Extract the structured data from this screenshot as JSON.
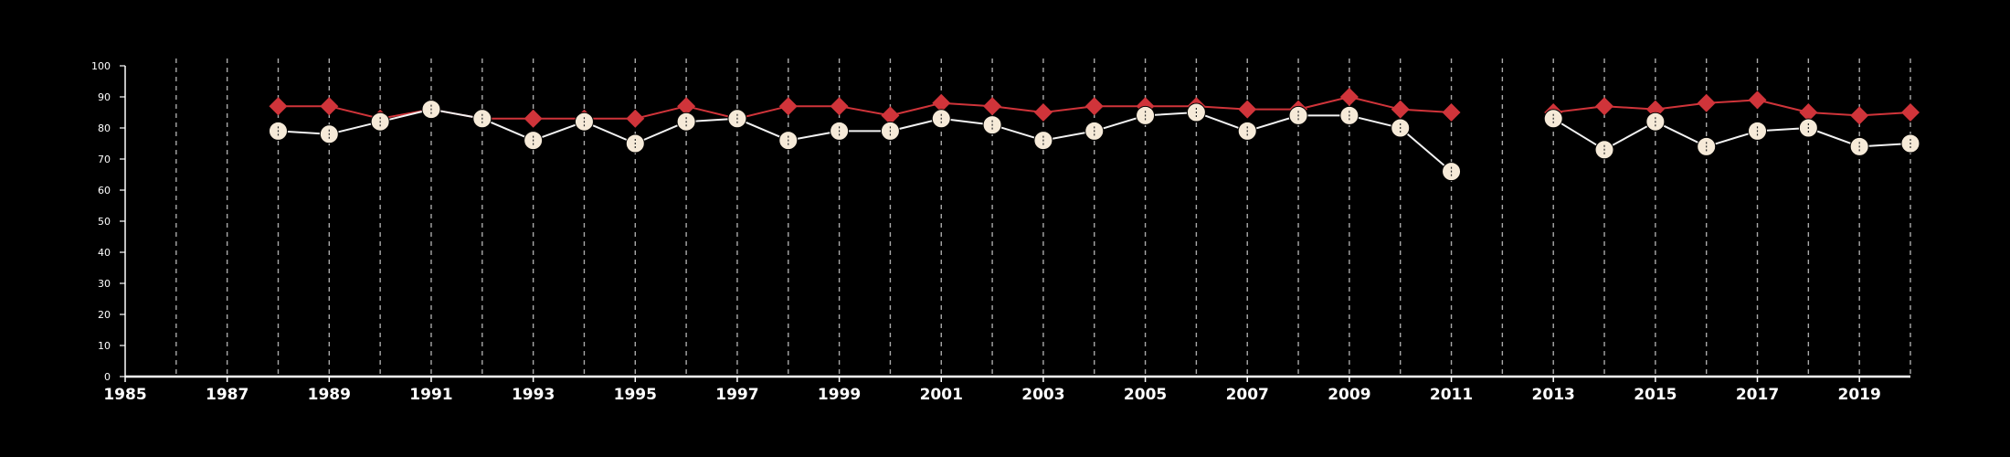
{
  "colors": {
    "background": "#000000",
    "axis": "#ffffff",
    "grid": "#aaaaaa",
    "series_a": "#d0343a",
    "series_b": "#f6ead8",
    "series_b_line": "#f2f2f2"
  },
  "chart_data": {
    "type": "line",
    "title": "",
    "xlabel": "",
    "ylabel": "",
    "xlim": [
      1985,
      2020
    ],
    "ylim": [
      0,
      100
    ],
    "x_ticks": [
      1985,
      1987,
      1989,
      1991,
      1993,
      1995,
      1997,
      1999,
      2001,
      2003,
      2005,
      2007,
      2009,
      2011,
      2013,
      2015,
      2017,
      2019
    ],
    "y_ticks": [
      0,
      10,
      20,
      30,
      40,
      50,
      60,
      70,
      80,
      90,
      100
    ],
    "x_gridlines": [
      1986,
      1987,
      1988,
      1989,
      1990,
      1991,
      1992,
      1993,
      1994,
      1995,
      1996,
      1997,
      1998,
      1999,
      2000,
      2001,
      2002,
      2003,
      2004,
      2005,
      2006,
      2007,
      2008,
      2009,
      2010,
      2011,
      2012,
      2013,
      2014,
      2015,
      2016,
      2017,
      2018,
      2019,
      2020
    ],
    "grid": "vertical dashed",
    "legend": "none",
    "x": [
      1988,
      1989,
      1990,
      1991,
      1992,
      1993,
      1994,
      1995,
      1996,
      1997,
      1998,
      1999,
      2000,
      2001,
      2002,
      2003,
      2004,
      2005,
      2006,
      2007,
      2008,
      2009,
      2010,
      2011,
      2012,
      2013,
      2014,
      2015,
      2016,
      2017,
      2018,
      2019,
      2020
    ],
    "series": [
      {
        "marker": "diamond",
        "color": "#d0343a",
        "values": [
          87,
          87,
          83,
          86,
          83,
          83,
          83,
          83,
          87,
          83,
          87,
          87,
          84,
          88,
          87,
          85,
          87,
          87,
          87,
          86,
          86,
          90,
          86,
          85,
          null,
          85,
          87,
          86,
          88,
          89,
          85,
          84,
          85
        ]
      },
      {
        "marker": "circle",
        "color": "#f6ead8",
        "values": [
          79,
          78,
          82,
          86,
          83,
          76,
          82,
          75,
          82,
          83,
          76,
          79,
          79,
          83,
          81,
          76,
          79,
          84,
          85,
          79,
          84,
          84,
          80,
          66,
          null,
          83,
          73,
          82,
          74,
          79,
          80,
          74,
          75
        ]
      }
    ]
  }
}
